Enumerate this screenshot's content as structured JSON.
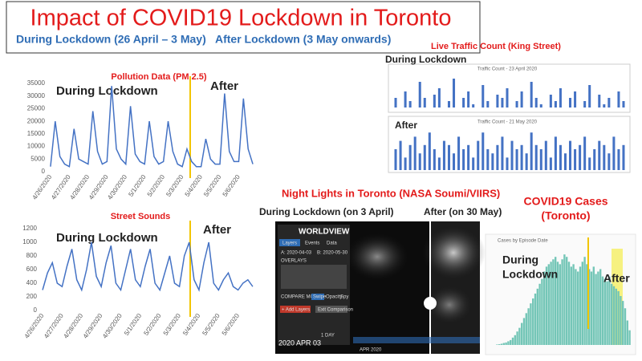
{
  "header": {
    "title": "Impact of COVID19 Lockdown in Toronto",
    "during": "During Lockdown (26 April – 3 May)",
    "after": "After Lockdown (3 May onwards)"
  },
  "chart_data": [
    {
      "type": "line",
      "title": "Pollution Data (PM 2.5)",
      "annotations": [
        "During Lockdown",
        "After"
      ],
      "categories": [
        "4/26/2020",
        null,
        null,
        null,
        "4/27/2020",
        null,
        null,
        null,
        "4/28/2020",
        null,
        null,
        null,
        "4/29/2020",
        null,
        null,
        null,
        "4/30/2020",
        null,
        null,
        null,
        "5/1/2020",
        null,
        null,
        null,
        "5/2/2020",
        null,
        null,
        null,
        "5/3/2020",
        null,
        null,
        null,
        "5/4/2020",
        null,
        null,
        null,
        "5/5/2020",
        null,
        null,
        null,
        "5/6/2020",
        null,
        null,
        null
      ],
      "values": [
        2000,
        20000,
        6000,
        3000,
        2000,
        17000,
        5000,
        4000,
        3000,
        24000,
        8000,
        3000,
        4000,
        34000,
        9000,
        5000,
        3000,
        26000,
        7000,
        4000,
        3000,
        20000,
        6000,
        3000,
        4000,
        20000,
        8000,
        3000,
        2000,
        9000,
        4000,
        2000,
        2000,
        13000,
        5000,
        3000,
        3000,
        31000,
        8000,
        4000,
        4000,
        29000,
        9000,
        3000
      ],
      "color": "#4472c4",
      "ylim": [
        0,
        35000
      ],
      "yticks": [
        0,
        5000,
        10000,
        15000,
        20000,
        25000,
        30000,
        35000
      ]
    },
    {
      "type": "line",
      "title": "Street Sounds",
      "annotations": [
        "During Lockdown",
        "After"
      ],
      "categories": [
        "4/26/2020",
        null,
        null,
        null,
        "4/27/2020",
        null,
        null,
        null,
        "4/28/2020",
        null,
        null,
        null,
        "4/29/2020",
        null,
        null,
        null,
        "4/30/2020",
        null,
        null,
        null,
        "5/1/2020",
        null,
        null,
        null,
        "5/2/2020",
        null,
        null,
        null,
        "5/3/2020",
        null,
        null,
        null,
        "5/4/2020",
        null,
        null,
        null,
        "5/5/2020",
        null,
        null,
        null,
        "5/6/2020",
        null,
        null,
        null
      ],
      "values": [
        300,
        550,
        700,
        400,
        350,
        650,
        900,
        450,
        300,
        600,
        1000,
        500,
        350,
        700,
        950,
        400,
        300,
        600,
        900,
        450,
        350,
        650,
        900,
        400,
        300,
        550,
        800,
        400,
        350,
        800,
        1000,
        450,
        300,
        700,
        1000,
        400,
        300,
        450,
        550,
        350,
        300,
        400,
        450,
        350
      ],
      "color": "#4472c4",
      "ylim": [
        0,
        1200
      ],
      "yticks": [
        0,
        200,
        400,
        600,
        800,
        1000,
        1200
      ]
    },
    {
      "type": "bar",
      "title": "Live Traffic Count  (King Street)",
      "annotations": [
        "During  Lockdown"
      ],
      "subtitle": "Traffic Count - 23 April 2020",
      "values": [
        0.3,
        0,
        0.5,
        0.2,
        0,
        0.8,
        0.3,
        0,
        0.4,
        0.6,
        0,
        0.2,
        0.9,
        0,
        0.3,
        0.5,
        0.1,
        0,
        0.7,
        0.2,
        0,
        0.4,
        0.3,
        0.6,
        0,
        0.2,
        0.5,
        0,
        0.8,
        0.3,
        0.1,
        0,
        0.4,
        0.2,
        0.6,
        0,
        0.3,
        0.5,
        0,
        0.2,
        0.7,
        0,
        0.4,
        0.1,
        0.3,
        0,
        0.5,
        0.2
      ],
      "color": "#4472c4",
      "ylim": [
        0,
        1
      ]
    },
    {
      "type": "bar",
      "annotations": [
        "After"
      ],
      "subtitle": "Traffic Count - 21 May 2020",
      "values": [
        0.5,
        0.7,
        0.3,
        0.6,
        0.8,
        0.4,
        0.6,
        0.9,
        0.5,
        0.3,
        0.7,
        0.6,
        0.4,
        0.8,
        0.5,
        0.6,
        0.3,
        0.7,
        0.9,
        0.5,
        0.4,
        0.6,
        0.8,
        0.3,
        0.7,
        0.5,
        0.6,
        0.4,
        0.9,
        0.6,
        0.5,
        0.7,
        0.3,
        0.8,
        0.6,
        0.4,
        0.7,
        0.5,
        0.6,
        0.8,
        0.3,
        0.5,
        0.7,
        0.6,
        0.4,
        0.8,
        0.5,
        0.6
      ],
      "color": "#4472c4",
      "ylim": [
        0,
        1
      ]
    },
    {
      "type": "bar",
      "title": "COVID19 Cases",
      "subtitle": "(Toronto)",
      "chart_label": "Cases by Episode Date",
      "annotations": [
        "During",
        "Lockdown",
        "After"
      ],
      "values": [
        2,
        3,
        5,
        8,
        10,
        15,
        20,
        30,
        40,
        55,
        70,
        90,
        110,
        130,
        150,
        170,
        190,
        210,
        230,
        250,
        270,
        300,
        320,
        330,
        340,
        350,
        360,
        340,
        330,
        350,
        370,
        360,
        340,
        320,
        330,
        310,
        300,
        320,
        340,
        360,
        330,
        310,
        300,
        320,
        290,
        300,
        310,
        280,
        270,
        260,
        280,
        250,
        240,
        230,
        220,
        200,
        180,
        150,
        100,
        60
      ],
      "color": "#74c6b7",
      "ylim": [
        0,
        400
      ]
    }
  ],
  "night_lights": {
    "title": "Night Lights in Toronto (NASA Soumi/VIIRS)",
    "left_label": "During Lockdown (on 3 April)",
    "right_label": "After (on 30 May)",
    "ui": {
      "app": "WORLDVIEW",
      "layers": "Layers",
      "events": "Events",
      "data": "Data",
      "a": "A: 2020-04-03",
      "b": "B: 2020-05-30",
      "overlays": "OVERLAYS",
      "compare": "COMPARE MODE:",
      "swipe": "Swipe",
      "opacity": "Opacity",
      "spy": "Spy",
      "add": "+ Add Layers",
      "exit": "Exit Comparison",
      "date": "2020 APR 03",
      "month": "APR 2020",
      "step": "1 DAY"
    }
  }
}
